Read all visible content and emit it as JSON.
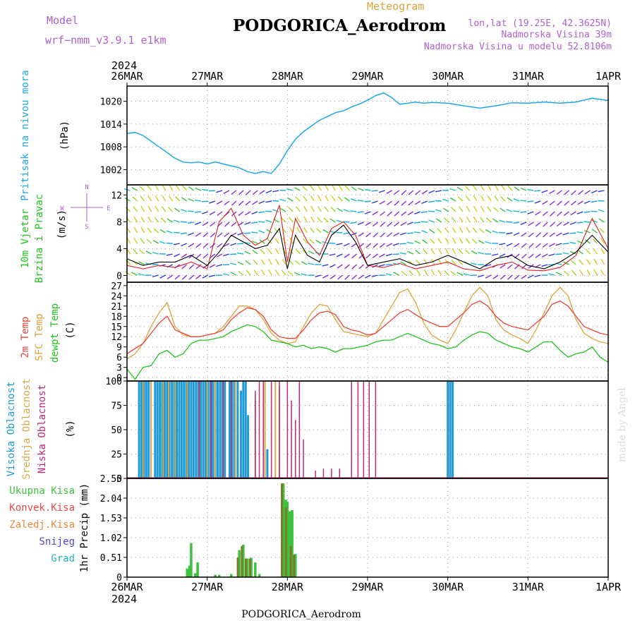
{
  "header": {
    "model_label": "Model",
    "model_name": "wrf−nmm_v3.9.1  e1km",
    "chart_kind": "Meteogram",
    "station_title": "PODGORICA_Aerodrom",
    "lonlat": "lon,lat (19.25E, 42.3625N)",
    "elevation": "Nadmorska Visina 39m",
    "model_elevation": "Nadmorska Visina u modelu 52.8106m",
    "year_top": "2024",
    "year_bottom": "2024",
    "footer": "PODGORICA_Aerodrom",
    "watermark": "made by Angel"
  },
  "colors": {
    "pressure": "#1fa8e8",
    "temp2m": "#e8463a",
    "sfc": "#e0a23a",
    "dewpt": "#22c21e",
    "wind_speed": "#000000",
    "gust": "#e02020",
    "high_cloud": "#1f9ad6",
    "mid_cloud": "#d4a94a",
    "low_cloud": "#c0287a",
    "total_precip": "#3cc23c",
    "conv_precip": "#e84a4a",
    "frozen_precip": "#e88a3a",
    "snow": "#4a4ad8",
    "hail": "#20b8b8",
    "mixed_precip": "#7a7a2a",
    "purple_label": "#b060d0"
  },
  "chart_data": [
    {
      "type": "line",
      "panel": "pressure",
      "ylabels": [
        "Pritisak na nivou mora",
        "(hPa)"
      ],
      "x_ticks": [
        "26MAR",
        "27MAR",
        "28MAR",
        "29MAR",
        "30MAR",
        "31MAR",
        "1APR"
      ],
      "y_ticks": [
        1002,
        1008,
        1014,
        1020
      ],
      "ylim": [
        998,
        1024
      ],
      "series": [
        {
          "x": [
            0,
            0.1,
            0.2,
            0.3,
            0.4,
            0.5,
            0.6,
            0.7,
            0.8,
            0.9,
            1.0,
            1.1,
            1.2,
            1.3,
            1.4,
            1.5,
            1.6,
            1.7,
            1.8,
            1.9,
            2.0,
            2.1,
            2.2,
            2.3,
            2.4,
            2.5,
            2.6,
            2.7,
            2.8,
            2.9,
            3.0,
            3.1,
            3.2,
            3.3,
            3.4,
            3.5,
            3.6,
            3.7,
            3.8,
            3.9,
            4.0,
            4.2,
            4.4,
            4.6,
            4.8,
            5.0,
            5.2,
            5.4,
            5.6,
            5.8,
            6.0
          ],
          "values": [
            1011.5,
            1011.8,
            1011,
            1009.5,
            1008,
            1006.5,
            1005,
            1004,
            1003.8,
            1004,
            1003.5,
            1004,
            1003.5,
            1003,
            1002.5,
            1001.5,
            1001,
            1001.5,
            1001,
            1003.5,
            1007,
            1010,
            1012,
            1013.5,
            1015,
            1016,
            1017,
            1017.5,
            1018.5,
            1019.3,
            1020.3,
            1021.5,
            1022.2,
            1021,
            1019.2,
            1019.5,
            1019.8,
            1019.5,
            1019.7,
            1019.6,
            1019.5,
            1018.8,
            1018.2,
            1018.8,
            1019.6,
            1019.5,
            1019.8,
            1019.5,
            1019.8,
            1020.8,
            1020.2
          ]
        }
      ]
    },
    {
      "type": "line",
      "panel": "wind",
      "ylabels": [
        "10m Vjetar",
        "Brzina i Pravac",
        "(m/s)"
      ],
      "compass_legend": [
        "N",
        "E",
        "S",
        "W"
      ],
      "y_ticks": [
        0,
        4,
        8,
        12
      ],
      "ylim": [
        -1,
        13.5
      ],
      "series": [
        {
          "name": "speed",
          "x": [
            0,
            0.2,
            0.4,
            0.6,
            0.8,
            1.0,
            1.15,
            1.3,
            1.45,
            1.6,
            1.75,
            1.9,
            2.0,
            2.1,
            2.25,
            2.4,
            2.55,
            2.7,
            2.85,
            3.0,
            3.2,
            3.4,
            3.6,
            3.8,
            4.0,
            4.2,
            4.4,
            4.6,
            4.8,
            5.0,
            5.2,
            5.4,
            5.6,
            5.8,
            6.0
          ],
          "values": [
            2.5,
            1.5,
            2.0,
            2.0,
            3.0,
            1.5,
            3.5,
            6.0,
            5.0,
            4.0,
            4.5,
            7.0,
            1.0,
            6.0,
            3.0,
            2.0,
            6.0,
            7.5,
            5.0,
            1.5,
            2.0,
            2.5,
            1.5,
            2.0,
            3.0,
            2.0,
            1.0,
            2.5,
            3.0,
            1.5,
            1.0,
            2.0,
            3.5,
            6.0,
            3.5
          ]
        },
        {
          "name": "gust",
          "x": [
            0,
            0.2,
            0.4,
            0.6,
            0.8,
            1.0,
            1.15,
            1.3,
            1.45,
            1.6,
            1.75,
            1.9,
            2.0,
            2.1,
            2.25,
            2.4,
            2.55,
            2.7,
            2.85,
            3.0,
            3.2,
            3.4,
            3.6,
            3.8,
            4.0,
            4.2,
            4.4,
            4.6,
            4.8,
            5.0,
            5.2,
            5.4,
            5.6,
            5.8,
            6.0
          ],
          "values": [
            1.5,
            1.0,
            1.5,
            1.2,
            2.0,
            1.0,
            8.0,
            10.0,
            6.0,
            4.5,
            5.5,
            10.5,
            2.0,
            8.5,
            5.0,
            3.0,
            7.0,
            8.0,
            6.0,
            1.5,
            1.2,
            1.8,
            1.0,
            1.5,
            2.0,
            1.0,
            0.7,
            1.5,
            2.0,
            0.8,
            0.7,
            1.2,
            3.0,
            8.5,
            4.0
          ]
        }
      ]
    },
    {
      "type": "line",
      "panel": "temperature",
      "ylabels": [
        "2m Temp",
        "SFC Temp",
        "dewpt Temp",
        "(C)"
      ],
      "y_ticks": [
        0,
        3,
        6,
        9,
        12,
        15,
        18,
        21,
        24,
        27
      ],
      "ylim": [
        -1,
        28
      ],
      "series": [
        {
          "name": "2m Temp",
          "x": [
            0,
            0.1,
            0.2,
            0.3,
            0.4,
            0.5,
            0.6,
            0.7,
            0.8,
            0.9,
            1.0,
            1.1,
            1.2,
            1.3,
            1.4,
            1.5,
            1.6,
            1.7,
            1.8,
            1.9,
            2.0,
            2.1,
            2.2,
            2.3,
            2.4,
            2.5,
            2.6,
            2.7,
            2.8,
            2.9,
            3.0,
            3.1,
            3.2,
            3.3,
            3.4,
            3.5,
            3.6,
            3.7,
            3.8,
            3.9,
            4.0,
            4.1,
            4.2,
            4.3,
            4.4,
            4.5,
            4.6,
            4.7,
            4.8,
            4.9,
            5.0,
            5.1,
            5.2,
            5.3,
            5.4,
            5.5,
            5.6,
            5.7,
            5.8,
            5.9,
            6.0
          ],
          "values": [
            7,
            8.5,
            10,
            13,
            16,
            18,
            14,
            13,
            12,
            12,
            12.5,
            13,
            14,
            17,
            19,
            20.5,
            20,
            18,
            14,
            12,
            11.5,
            11.5,
            14,
            17,
            19,
            19.5,
            18.5,
            15,
            14,
            13.5,
            12.5,
            13,
            15,
            17,
            19,
            20,
            18.5,
            17,
            16,
            15,
            15,
            17,
            19,
            21.5,
            22.5,
            21,
            18,
            16,
            15,
            14.5,
            14,
            16,
            18,
            21.5,
            22.5,
            21,
            18,
            15,
            14,
            13,
            12.5
          ]
        },
        {
          "name": "SFC Temp",
          "x": [
            0,
            0.1,
            0.2,
            0.3,
            0.4,
            0.5,
            0.6,
            0.7,
            0.8,
            0.9,
            1.0,
            1.1,
            1.2,
            1.3,
            1.4,
            1.5,
            1.6,
            1.7,
            1.8,
            1.9,
            2.0,
            2.1,
            2.2,
            2.3,
            2.4,
            2.5,
            2.6,
            2.7,
            2.8,
            2.9,
            3.0,
            3.1,
            3.2,
            3.3,
            3.4,
            3.5,
            3.6,
            3.7,
            3.8,
            3.9,
            4.0,
            4.1,
            4.2,
            4.3,
            4.4,
            4.5,
            4.6,
            4.7,
            4.8,
            4.9,
            5.0,
            5.1,
            5.2,
            5.3,
            5.4,
            5.5,
            5.6,
            5.7,
            5.8,
            5.9,
            6.0
          ],
          "values": [
            5.5,
            7,
            10,
            15,
            19,
            22,
            15,
            12.5,
            12,
            12,
            12.5,
            13,
            15,
            18,
            21,
            21,
            20,
            17,
            13,
            11,
            10,
            10.5,
            15,
            19,
            21.5,
            21,
            17,
            13.5,
            13,
            12.5,
            12,
            13,
            17,
            21,
            25,
            26,
            22,
            16,
            12.5,
            11,
            10,
            14,
            19,
            24,
            26.5,
            24,
            17,
            14,
            12.5,
            11.5,
            10,
            14,
            19,
            24,
            26.5,
            24,
            17,
            13,
            11.5,
            10.5,
            10
          ]
        },
        {
          "name": "dewpt Temp",
          "x": [
            0,
            0.1,
            0.2,
            0.3,
            0.4,
            0.5,
            0.6,
            0.7,
            0.8,
            0.9,
            1.0,
            1.1,
            1.2,
            1.3,
            1.4,
            1.5,
            1.6,
            1.7,
            1.8,
            1.9,
            2.0,
            2.1,
            2.2,
            2.3,
            2.4,
            2.5,
            2.6,
            2.7,
            2.8,
            2.9,
            3.0,
            3.1,
            3.2,
            3.3,
            3.4,
            3.5,
            3.6,
            3.7,
            3.8,
            3.9,
            4.0,
            4.1,
            4.2,
            4.3,
            4.4,
            4.5,
            4.6,
            4.7,
            4.8,
            4.9,
            5.0,
            5.1,
            5.2,
            5.3,
            5.4,
            5.5,
            5.6,
            5.7,
            5.8,
            5.9,
            6.0
          ],
          "values": [
            2.5,
            -0.5,
            3,
            3.5,
            7,
            8,
            6,
            7,
            10,
            11,
            11,
            11.5,
            12,
            13.5,
            14.5,
            15.5,
            15,
            13.5,
            11,
            10.5,
            10,
            9,
            9.5,
            8.5,
            9,
            8.5,
            7.5,
            8.5,
            8.5,
            9,
            9.5,
            10.5,
            11,
            11,
            12,
            13,
            12,
            11,
            10,
            9.5,
            8.5,
            9,
            11,
            12.5,
            13.5,
            13,
            11,
            10,
            9,
            8.5,
            7.5,
            9,
            10.5,
            10.5,
            8,
            6,
            7,
            7.5,
            9,
            6,
            4.5
          ]
        }
      ]
    },
    {
      "type": "bar",
      "panel": "cloud",
      "ylabels": [
        "Visoka Oblacnost",
        "Srednja Oblacnost",
        "Niska Oblacnost",
        "(%)"
      ],
      "y_ticks": [
        0,
        25,
        50,
        75,
        100
      ],
      "ylim": [
        0,
        100
      ],
      "series": [
        {
          "name": "Visoka Oblacnost",
          "x": [
            0.15,
            0.18,
            0.21,
            0.24,
            0.27,
            0.35,
            0.38,
            0.41,
            0.44,
            0.47,
            0.5,
            0.53,
            0.56,
            0.59,
            0.62,
            0.65,
            0.68,
            0.71,
            0.74,
            0.77,
            0.8,
            0.83,
            0.86,
            0.89,
            0.92,
            0.95,
            0.98,
            1.01,
            1.04,
            1.07,
            1.1,
            1.13,
            1.16,
            1.19,
            1.22,
            1.28,
            1.31,
            1.34,
            1.38,
            1.42,
            1.45,
            1.48,
            1.51,
            1.75,
            4.0,
            4.03,
            4.06
          ],
          "values": [
            100,
            100,
            100,
            100,
            100,
            100,
            100,
            100,
            100,
            100,
            100,
            100,
            100,
            100,
            100,
            100,
            100,
            100,
            100,
            100,
            100,
            100,
            100,
            100,
            100,
            100,
            100,
            100,
            100,
            100,
            100,
            100,
            100,
            100,
            100,
            100,
            100,
            100,
            100,
            90,
            100,
            100,
            65,
            30,
            100,
            100,
            100
          ]
        },
        {
          "name": "Srednja Oblacnost",
          "x": [
            0.2,
            0.3,
            0.45,
            0.52,
            0.6,
            0.75,
            0.9,
            1.0,
            1.1,
            1.2,
            1.35,
            1.6,
            1.72,
            1.85,
            1.9
          ],
          "values": [
            100,
            100,
            100,
            100,
            100,
            100,
            100,
            100,
            100,
            100,
            100,
            80,
            100,
            100,
            95
          ]
        },
        {
          "name": "Niska Oblacnost",
          "x": [
            0.9,
            1.05,
            1.2,
            1.3,
            1.6,
            1.65,
            1.7,
            1.8,
            1.9,
            2.0,
            2.05,
            2.1,
            2.15,
            2.2,
            2.35,
            2.45,
            2.55,
            2.65,
            2.8,
            2.88,
            2.95,
            3.02,
            3.1
          ],
          "values": [
            100,
            100,
            100,
            100,
            90,
            100,
            100,
            100,
            100,
            100,
            80,
            60,
            100,
            40,
            8,
            10,
            10,
            10,
            100,
            100,
            100,
            100,
            100
          ]
        }
      ]
    },
    {
      "type": "bar",
      "panel": "precip",
      "ylabels": [
        "Ukupna Kisa",
        "Konvek.Kisa",
        "Zaledj.Kisa",
        "Snijeg",
        "Grad",
        "1hr Precip (mm)"
      ],
      "y_ticks": [
        0,
        0.51,
        1.02,
        1.53,
        2.04,
        2.55
      ],
      "ylim": [
        0,
        2.55
      ],
      "series": [
        {
          "name": "Ukupna Kisa",
          "x": [
            0.75,
            0.78,
            0.8,
            0.85,
            0.88,
            1.1,
            1.15,
            1.3,
            1.4,
            1.45,
            1.5,
            1.55,
            1.6,
            1.65,
            1.95,
            1.98,
            2.0,
            2.03,
            2.06,
            2.1
          ],
          "values": [
            0.22,
            0.3,
            0.88,
            0.1,
            0.38,
            0.06,
            0.06,
            0.08,
            0.7,
            0.84,
            0.48,
            0.5,
            0.38,
            0.08,
            2.42,
            2.0,
            1.95,
            1.7,
            1.73,
            0.6
          ]
        },
        {
          "name": "Konvek.Kisa",
          "x": [
            1.4,
            1.45,
            1.5,
            1.55,
            1.95,
            2.0,
            2.06,
            2.1
          ],
          "values": [
            0.5,
            0.8,
            0.48,
            0.48,
            2.42,
            1.8,
            0.8,
            0.58
          ]
        }
      ]
    }
  ]
}
